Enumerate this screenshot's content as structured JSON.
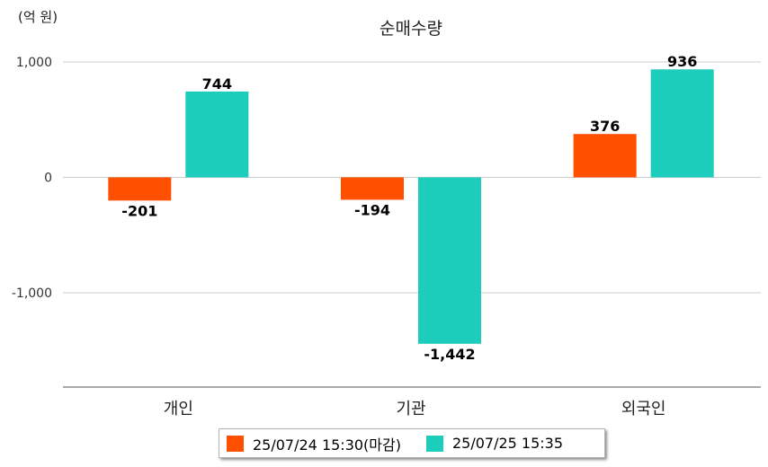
{
  "chart_data": {
    "type": "bar",
    "title": "순매수량",
    "unit_label": "(억 원)",
    "categories": [
      "개인",
      "기관",
      "외국인"
    ],
    "series": [
      {
        "name": "25/07/24 15:30(마감)",
        "color": "#ff5000",
        "values": [
          -201,
          -194,
          376
        ],
        "labels": [
          "-201",
          "-194",
          "376"
        ]
      },
      {
        "name": "25/07/25 15:35",
        "color": "#1dcdbb",
        "values": [
          744,
          -1442,
          936
        ],
        "labels": [
          "744",
          "-1,442",
          "936"
        ]
      }
    ],
    "yticks": [
      1000,
      0,
      -1000
    ],
    "ytick_labels": [
      "1,000",
      "0",
      "-1,000"
    ],
    "ylim": [
      -1800,
      1000
    ],
    "grid": true,
    "legend_position": "bottom"
  }
}
